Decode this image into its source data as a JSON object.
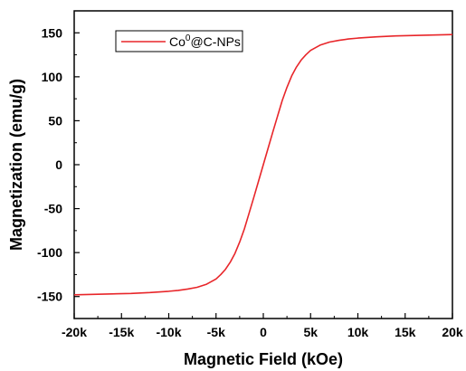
{
  "chart_data": {
    "type": "line",
    "title": "",
    "xlabel": "Magnetic Field (kOe)",
    "ylabel": "Magnetization (emu/g)",
    "xlim": [
      -20000,
      20000
    ],
    "ylim": [
      -175,
      175
    ],
    "x_ticks": [
      -20000,
      -15000,
      -10000,
      -5000,
      0,
      5000,
      10000,
      15000,
      20000
    ],
    "x_tick_labels": [
      "-20k",
      "-15k",
      "-10k",
      "-5k",
      "0",
      "5k",
      "10k",
      "15k",
      "20k"
    ],
    "y_ticks": [
      -150,
      -100,
      -50,
      0,
      50,
      100,
      150
    ],
    "y_tick_labels": [
      "-150",
      "-100",
      "-50",
      "0",
      "50",
      "100",
      "150"
    ],
    "grid": false,
    "legend_position": "top-left",
    "series": [
      {
        "name": "Co",
        "name_superscript": "0",
        "name_suffix": "@C-NPs",
        "color": "#e8262a",
        "x": [
          -20000,
          -18000,
          -16000,
          -14000,
          -12000,
          -10000,
          -9000,
          -8000,
          -7000,
          -6000,
          -5000,
          -4500,
          -4000,
          -3500,
          -3000,
          -2500,
          -2000,
          -1500,
          -1000,
          -500,
          0,
          500,
          1000,
          1500,
          2000,
          2500,
          3000,
          3500,
          4000,
          4500,
          5000,
          6000,
          7000,
          8000,
          9000,
          10000,
          12000,
          14000,
          16000,
          18000,
          20000
        ],
        "y": [
          -148,
          -147.5,
          -147,
          -146.5,
          -145.5,
          -144,
          -143,
          -141.5,
          -139.5,
          -136,
          -130,
          -125,
          -119,
          -111,
          -101,
          -88,
          -73,
          -55,
          -37,
          -18.5,
          0,
          18.5,
          37,
          55,
          73,
          88,
          101,
          111,
          119,
          125,
          130,
          136,
          139.5,
          141.5,
          143,
          144,
          145.5,
          146.5,
          147,
          147.5,
          148
        ]
      }
    ]
  }
}
